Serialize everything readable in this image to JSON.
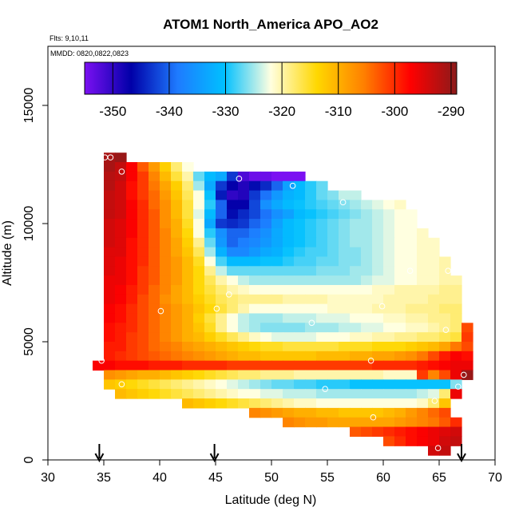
{
  "chart_data": {
    "type": "heatmap",
    "title": "ATOM1 North_America APO_AO2",
    "flights_note": "Flts: 9,10,11",
    "dates_note": "MMDD: 0820,0822,0823",
    "xlabel": "Latitude (deg N)",
    "ylabel": "Altitude (m)",
    "xlim": [
      30,
      70
    ],
    "ylim": [
      0,
      17500
    ],
    "xticks": [
      30,
      35,
      40,
      45,
      50,
      55,
      60,
      65,
      70
    ],
    "yticks": [
      0,
      5000,
      10000,
      15000
    ],
    "colorbar": {
      "range": [
        -355,
        -289
      ],
      "ticks": [
        -350,
        -340,
        -330,
        -320,
        -310,
        -300,
        -290
      ],
      "palette": [
        "#7b10f2",
        "#0000a8",
        "#1e7bff",
        "#00c0ff",
        "#ffffe0",
        "#ffd700",
        "#ff8000",
        "#ff0000",
        "#8b1a1a"
      ]
    },
    "cell_size": {
      "lat": 1,
      "alt_m": 400
    },
    "rows": [
      {
        "alt": 12800,
        "lat_start": 35,
        "vals": [
          -291,
          -290
        ]
      },
      {
        "alt": 12400,
        "lat_start": 35,
        "vals": [
          -291,
          -293,
          -297,
          -303,
          -308,
          -313,
          -318,
          -322
        ]
      },
      {
        "alt": 12000,
        "lat_start": 35,
        "vals": [
          -292,
          -293,
          -297,
          -301,
          -306,
          -311,
          -316,
          -320,
          -327,
          -331,
          -333,
          -343,
          -352,
          -354,
          -354,
          -355,
          -355,
          -355
        ]
      },
      {
        "alt": 11600,
        "lat_start": 35,
        "vals": [
          -292,
          -294,
          -298,
          -301,
          -305,
          -309,
          -313,
          -318,
          -325,
          -333,
          -343,
          -347,
          -349,
          -346,
          -344,
          -340,
          -334,
          -331,
          -329,
          -327
        ]
      },
      {
        "alt": 11200,
        "lat_start": 35,
        "vals": [
          -293,
          -294,
          -298,
          -301,
          -304,
          -308,
          -312,
          -317,
          -322,
          -330,
          -345,
          -350,
          -349,
          -343,
          -339,
          -335,
          -332,
          -331,
          -329,
          -327,
          -326,
          -324,
          -324
        ]
      },
      {
        "alt": 10800,
        "lat_start": 35,
        "vals": [
          -293,
          -294,
          -297,
          -300,
          -304,
          -307,
          -311,
          -316,
          -322,
          -329,
          -340,
          -347,
          -347,
          -342,
          -336,
          -333,
          -331,
          -330,
          -329,
          -328,
          -327,
          -326,
          -325,
          -324,
          -323,
          -322,
          -321
        ]
      },
      {
        "alt": 10400,
        "lat_start": 35,
        "vals": [
          -293,
          -294,
          -297,
          -300,
          -303,
          -307,
          -311,
          -316,
          -323,
          -331,
          -340,
          -346,
          -344,
          -342,
          -339,
          -336,
          -334,
          -331,
          -330,
          -329,
          -328,
          -327,
          -326,
          -325,
          -324,
          -323,
          -322,
          -322
        ]
      },
      {
        "alt": 10000,
        "lat_start": 35,
        "vals": [
          -294,
          -295,
          -297,
          -300,
          -303,
          -307,
          -310,
          -315,
          -322,
          -333,
          -343,
          -344,
          -343,
          -340,
          -338,
          -334,
          -331,
          -330,
          -329,
          -328,
          -327,
          -326,
          -325,
          -325,
          -324,
          -323,
          -322,
          -322
        ]
      },
      {
        "alt": 9600,
        "lat_start": 35,
        "vals": [
          -294,
          -295,
          -297,
          -300,
          -303,
          -306,
          -310,
          -314,
          -322,
          -329,
          -336,
          -340,
          -340,
          -338,
          -336,
          -333,
          -331,
          -330,
          -329,
          -328,
          -327,
          -326,
          -325,
          -325,
          -324,
          -323,
          -322,
          -322,
          -321
        ]
      },
      {
        "alt": 9200,
        "lat_start": 35,
        "vals": [
          -294,
          -295,
          -298,
          -300,
          -303,
          -306,
          -309,
          -313,
          -319,
          -327,
          -335,
          -340,
          -338,
          -337,
          -335,
          -333,
          -331,
          -330,
          -329,
          -328,
          -327,
          -326,
          -325,
          -325,
          -324,
          -323,
          -322,
          -322,
          -321,
          -321
        ]
      },
      {
        "alt": 8800,
        "lat_start": 35,
        "vals": [
          -295,
          -295,
          -298,
          -300,
          -303,
          -306,
          -309,
          -312,
          -317,
          -325,
          -332,
          -337,
          -337,
          -335,
          -333,
          -332,
          -330,
          -329,
          -328,
          -328,
          -327,
          -326,
          -326,
          -325,
          -324,
          -323,
          -322,
          -322,
          -321,
          -321
        ]
      },
      {
        "alt": 8400,
        "lat_start": 35,
        "vals": [
          -295,
          -296,
          -298,
          -300,
          -303,
          -306,
          -308,
          -311,
          -315,
          -322,
          -328,
          -331,
          -331,
          -331,
          -330,
          -330,
          -329,
          -328,
          -328,
          -327,
          -327,
          -326,
          -326,
          -325,
          -324,
          -323,
          -322,
          -322,
          -321,
          -321,
          -320
        ]
      },
      {
        "alt": 8000,
        "lat_start": 35,
        "vals": [
          -295,
          -296,
          -298,
          -301,
          -303,
          -306,
          -308,
          -311,
          -314,
          -319,
          -324,
          -327,
          -327,
          -327,
          -327,
          -327,
          -327,
          -327,
          -327,
          -326,
          -326,
          -326,
          -325,
          -325,
          -324,
          -323,
          -322,
          -322,
          -321,
          -321,
          -320
        ]
      },
      {
        "alt": 7600,
        "lat_start": 35,
        "vals": [
          -296,
          -296,
          -298,
          -301,
          -303,
          -306,
          -308,
          -311,
          -314,
          -317,
          -320,
          -322,
          -324,
          -325,
          -325,
          -325,
          -325,
          -325,
          -325,
          -325,
          -325,
          -325,
          -325,
          -324,
          -323,
          -323,
          -322,
          -322,
          -321,
          -321,
          -320,
          -320
        ]
      },
      {
        "alt": 7200,
        "lat_start": 35,
        "vals": [
          -296,
          -297,
          -299,
          -301,
          -304,
          -306,
          -309,
          -311,
          -314,
          -316,
          -318,
          -320,
          -321,
          -322,
          -322,
          -322,
          -322,
          -322,
          -322,
          -322,
          -322,
          -322,
          -322,
          -322,
          -321,
          -321,
          -320,
          -320,
          -320,
          -320,
          -319,
          -319
        ]
      },
      {
        "alt": 6800,
        "lat_start": 35,
        "vals": [
          -296,
          -297,
          -299,
          -302,
          -304,
          -307,
          -309,
          -311,
          -313,
          -315,
          -317,
          -318,
          -319,
          -319,
          -319,
          -319,
          -320,
          -320,
          -320,
          -320,
          -321,
          -321,
          -321,
          -321,
          -321,
          -320,
          -320,
          -320,
          -320,
          -319,
          -319,
          -319
        ]
      },
      {
        "alt": 6400,
        "lat_start": 35,
        "vals": [
          -297,
          -298,
          -300,
          -302,
          -304,
          -306,
          -308,
          -310,
          -312,
          -314,
          -316,
          -318,
          -320,
          -322,
          -322,
          -322,
          -322,
          -322,
          -322,
          -322,
          -321,
          -321,
          -321,
          -321,
          -320,
          -320,
          -320,
          -319,
          -319,
          -319,
          -318,
          -318
        ]
      },
      {
        "alt": 6000,
        "lat_start": 35,
        "vals": [
          -297,
          -298,
          -300,
          -302,
          -304,
          -306,
          -308,
          -310,
          -313,
          -316,
          -319,
          -322,
          -324,
          -325,
          -325,
          -325,
          -324,
          -324,
          -324,
          -323,
          -323,
          -323,
          -322,
          -322,
          -322,
          -321,
          -321,
          -320,
          -320,
          -319,
          -319,
          -318
        ]
      },
      {
        "alt": 5600,
        "lat_start": 35,
        "vals": [
          -298,
          -299,
          -300,
          -302,
          -304,
          -306,
          -308,
          -310,
          -312,
          -315,
          -319,
          -322,
          -324,
          -325,
          -326,
          -326,
          -326,
          -326,
          -325,
          -325,
          -325,
          -324,
          -324,
          -323,
          -323,
          -322,
          -322,
          -321,
          -321,
          -320,
          -319,
          -318,
          -302
        ]
      },
      {
        "alt": 5200,
        "lat_start": 35,
        "vals": [
          -298,
          -299,
          -301,
          -302,
          -304,
          -306,
          -308,
          -310,
          -311,
          -313,
          -315,
          -317,
          -319,
          -321,
          -322,
          -323,
          -323,
          -323,
          -323,
          -322,
          -322,
          -322,
          -321,
          -321,
          -320,
          -320,
          -319,
          -319,
          -318,
          -318,
          -317,
          -316,
          -301
        ]
      },
      {
        "alt": 4800,
        "lat_start": 35,
        "vals": [
          -299,
          -299,
          -301,
          -302,
          -304,
          -305,
          -306,
          -308,
          -309,
          -310,
          -311,
          -312,
          -313,
          -314,
          -315,
          -315,
          -316,
          -316,
          -316,
          -316,
          -316,
          -315,
          -315,
          -315,
          -314,
          -314,
          -314,
          -313,
          -312,
          -311,
          -309,
          -305,
          -302
        ]
      },
      {
        "alt": 4400,
        "lat_start": 35,
        "vals": [
          -299,
          -300,
          -301,
          -302,
          -303,
          -304,
          -305,
          -306,
          -307,
          -308,
          -309,
          -310,
          -311,
          -311,
          -312,
          -312,
          -312,
          -312,
          -312,
          -311,
          -311,
          -311,
          -310,
          -310,
          -309,
          -309,
          -308,
          -307,
          -305,
          -302,
          -299,
          -297,
          -298
        ]
      },
      {
        "alt": 4000,
        "lat_start": 34,
        "vals": [
          -297,
          -297,
          -298,
          -298,
          -298,
          -299,
          -299,
          -299,
          -300,
          -300,
          -300,
          -300,
          -301,
          -301,
          -301,
          -301,
          -301,
          -301,
          -301,
          -301,
          -301,
          -301,
          -301,
          -301,
          -301,
          -300,
          -300,
          -300,
          -300,
          -299,
          -298,
          -297,
          -296,
          -296
        ]
      },
      {
        "alt": 3600,
        "lat_start": 35,
        "vals": [
          -307,
          -308,
          -309,
          -310,
          -310,
          -311,
          -312,
          -313,
          -314,
          -315,
          -316,
          -317,
          -318,
          -318,
          -319,
          -319,
          -319,
          -320,
          -320,
          -320,
          -320,
          -320,
          -320,
          -320,
          -320,
          -321,
          -321,
          -321,
          -301,
          -306,
          -302,
          -296,
          -290
        ]
      },
      {
        "alt": 3200,
        "lat_start": 35,
        "vals": [
          -312,
          -313,
          -314,
          -315,
          -316,
          -317,
          -318,
          -319,
          -320,
          -321,
          -322,
          -323,
          -324,
          -325,
          -326,
          -327,
          -327,
          -328,
          -328,
          -329,
          -329,
          -329,
          -330,
          -330,
          -330,
          -330,
          -330,
          -330,
          -330,
          -330,
          -330,
          -326
        ]
      },
      {
        "alt": 2800,
        "lat_start": 36,
        "vals": [
          -311,
          -312,
          -313,
          -314,
          -315,
          -316,
          -317,
          -318,
          -319,
          -320,
          -321,
          -322,
          -322,
          -323,
          -323,
          -324,
          -324,
          -324,
          -325,
          -325,
          -325,
          -325,
          -325,
          -325,
          -325,
          -325,
          -325,
          -324,
          -323,
          -318,
          -296
        ]
      },
      {
        "alt": 2400,
        "lat_start": 42,
        "vals": [
          -311,
          -312,
          -313,
          -314,
          -315,
          -316,
          -317,
          -318,
          -319,
          -320,
          -321,
          -321,
          -322,
          -322,
          -322,
          -322,
          -322,
          -322,
          -322,
          -322,
          -322,
          -321,
          -318,
          -312
        ]
      },
      {
        "alt": 2000,
        "lat_start": 48,
        "vals": [
          -306,
          -307,
          -308,
          -309,
          -310,
          -310,
          -311,
          -311,
          -312,
          -312,
          -312,
          -312,
          -311,
          -310,
          -308,
          -306,
          -304,
          -302
        ]
      },
      {
        "alt": 1600,
        "lat_start": 51,
        "vals": [
          -306,
          -307,
          -308,
          -308,
          -309,
          -309,
          -309,
          -309,
          -309,
          -309,
          -308,
          -307,
          -306,
          -305,
          -303,
          -300
        ]
      },
      {
        "alt": 1200,
        "lat_start": 57,
        "vals": [
          -303,
          -302,
          -301,
          -300,
          -299,
          -298,
          -297,
          -296,
          -295,
          -294
        ]
      },
      {
        "alt": 800,
        "lat_start": 60,
        "vals": [
          -302,
          -300,
          -298,
          -297,
          -296,
          -294,
          -293
        ]
      },
      {
        "alt": 400,
        "lat_start": 64,
        "vals": [
          -294,
          -293
        ]
      }
    ],
    "sample_points": [
      {
        "lat": 35.1,
        "alt": 12800
      },
      {
        "lat": 35.6,
        "alt": 12800
      },
      {
        "lat": 36.6,
        "alt": 12200
      },
      {
        "lat": 47.1,
        "alt": 11900
      },
      {
        "lat": 51.9,
        "alt": 11600
      },
      {
        "lat": 56.4,
        "alt": 10900
      },
      {
        "lat": 62.4,
        "alt": 8000
      },
      {
        "lat": 65.8,
        "alt": 8000
      },
      {
        "lat": 46.2,
        "alt": 7000
      },
      {
        "lat": 59.9,
        "alt": 6500
      },
      {
        "lat": 40.1,
        "alt": 6300
      },
      {
        "lat": 45.1,
        "alt": 6400
      },
      {
        "lat": 53.6,
        "alt": 5800
      },
      {
        "lat": 65.6,
        "alt": 5500
      },
      {
        "lat": 34.8,
        "alt": 4200
      },
      {
        "lat": 58.9,
        "alt": 4200
      },
      {
        "lat": 67.2,
        "alt": 3600
      },
      {
        "lat": 36.6,
        "alt": 3200
      },
      {
        "lat": 54.8,
        "alt": 3000
      },
      {
        "lat": 66.7,
        "alt": 3100
      },
      {
        "lat": 64.6,
        "alt": 2500
      },
      {
        "lat": 59.1,
        "alt": 1800
      },
      {
        "lat": 64.9,
        "alt": 500
      }
    ],
    "arrows": [
      {
        "lat": 34.6
      },
      {
        "lat": 44.9
      },
      {
        "lat": 67.0
      }
    ]
  }
}
